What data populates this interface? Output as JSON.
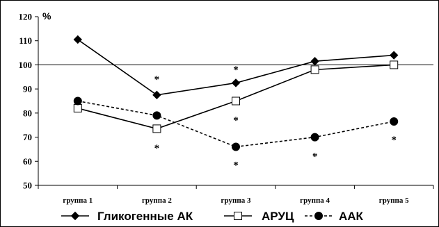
{
  "chart_data": {
    "type": "line",
    "ylabel": "%",
    "ylim": [
      50,
      120
    ],
    "yticks": [
      50,
      60,
      70,
      80,
      90,
      100,
      110,
      120
    ],
    "reference_line": 100,
    "categories": [
      "группа 1",
      "группа 2",
      "группа 3",
      "группа 4",
      "группа 5"
    ],
    "series": [
      {
        "name": "Гликогенные АК",
        "marker": "diamond",
        "line": "solid",
        "values": [
          110.5,
          87.5,
          92.5,
          101.5,
          104
        ]
      },
      {
        "name": "АРУЦ",
        "marker": "square",
        "line": "solid",
        "values": [
          82,
          73.5,
          85,
          98,
          100
        ]
      },
      {
        "name": "ААК",
        "marker": "circle",
        "line": "dashed",
        "values": [
          85,
          79,
          66,
          70,
          76.5
        ]
      }
    ],
    "annotations": [
      {
        "text": "*",
        "category": "группа 2",
        "y": 95.5
      },
      {
        "text": "*",
        "category": "группа 2",
        "y": 67
      },
      {
        "text": "*",
        "category": "группа 3",
        "y": 99.5
      },
      {
        "text": "*",
        "category": "группа 3",
        "y": 78.5
      },
      {
        "text": "*",
        "category": "группа 3",
        "y": 60
      },
      {
        "text": "*",
        "category": "группа 4",
        "y": 63.5
      },
      {
        "text": "*",
        "category": "группа 5",
        "y": 70.5
      }
    ],
    "legend_position": "bottom"
  }
}
